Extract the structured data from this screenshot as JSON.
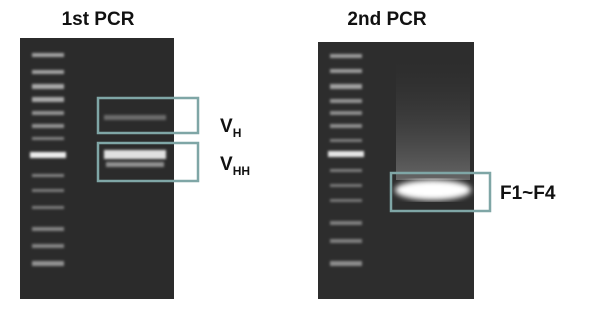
{
  "panels": [
    {
      "title": "1st PCR",
      "labels": [
        {
          "main": "V",
          "sub": "H"
        },
        {
          "main": "V",
          "sub": "HH"
        }
      ]
    },
    {
      "title": "2nd PCR",
      "labels": [
        {
          "main": "F1~F4"
        }
      ]
    }
  ]
}
